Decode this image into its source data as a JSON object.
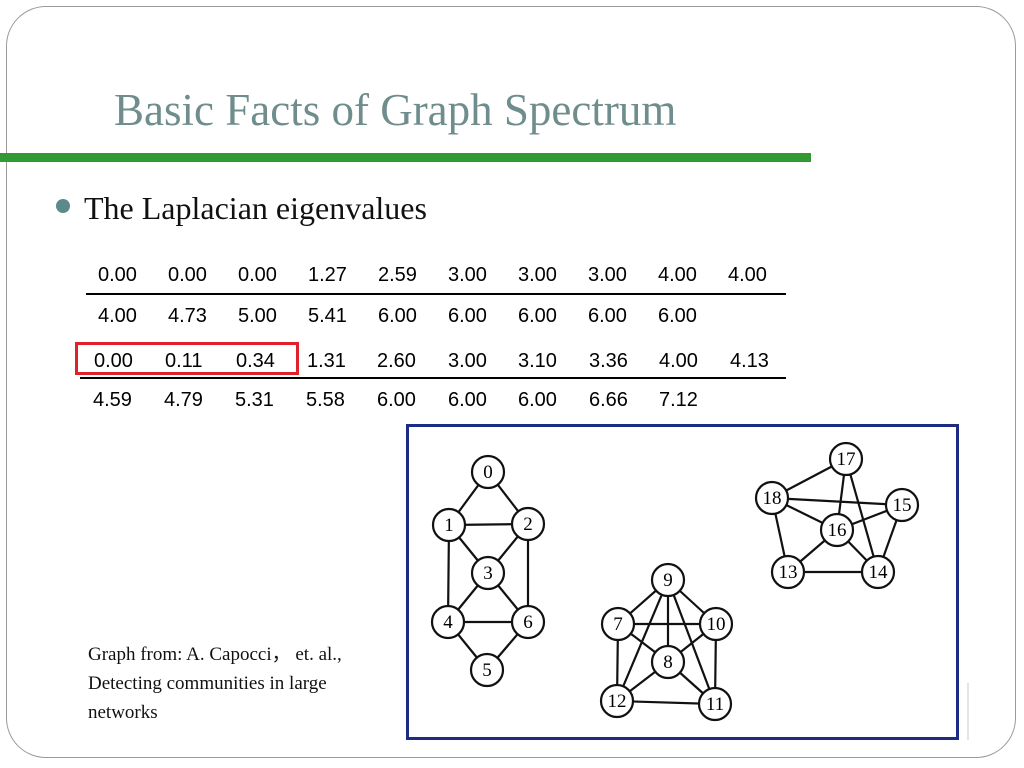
{
  "title": "Basic Facts of Graph Spectrum",
  "bullet": "The Laplacian eigenvalues",
  "eigen_table_1": {
    "row1": [
      "0.00",
      "0.00",
      "0.00",
      "1.27",
      "2.59",
      "3.00",
      "3.00",
      "3.00",
      "4.00",
      "4.00"
    ],
    "row2": [
      "4.00",
      "4.73",
      "5.00",
      "5.41",
      "6.00",
      "6.00",
      "6.00",
      "6.00",
      "6.00"
    ]
  },
  "eigen_table_2": {
    "row1": [
      "0.00",
      "0.11",
      "0.34",
      "1.31",
      "2.60",
      "3.00",
      "3.10",
      "3.36",
      "4.00",
      "4.13"
    ],
    "row2": [
      "4.59",
      "4.79",
      "5.31",
      "5.58",
      "6.00",
      "6.00",
      "6.00",
      "6.66",
      "7.12"
    ]
  },
  "graph": {
    "nodes": [
      "0",
      "1",
      "2",
      "3",
      "4",
      "5",
      "6",
      "7",
      "8",
      "9",
      "10",
      "11",
      "12",
      "13",
      "14",
      "15",
      "16",
      "17",
      "18"
    ],
    "edges": [
      [
        0,
        1
      ],
      [
        0,
        2
      ],
      [
        1,
        2
      ],
      [
        1,
        3
      ],
      [
        2,
        3
      ],
      [
        1,
        4
      ],
      [
        2,
        6
      ],
      [
        3,
        4
      ],
      [
        3,
        6
      ],
      [
        4,
        6
      ],
      [
        4,
        5
      ],
      [
        6,
        5
      ],
      [
        9,
        7
      ],
      [
        9,
        10
      ],
      [
        9,
        8
      ],
      [
        9,
        12
      ],
      [
        9,
        11
      ],
      [
        7,
        10
      ],
      [
        7,
        8
      ],
      [
        7,
        12
      ],
      [
        10,
        8
      ],
      [
        10,
        11
      ],
      [
        8,
        12
      ],
      [
        8,
        11
      ],
      [
        12,
        11
      ],
      [
        17,
        18
      ],
      [
        17,
        16
      ],
      [
        17,
        14
      ],
      [
        18,
        15
      ],
      [
        18,
        16
      ],
      [
        18,
        13
      ],
      [
        15,
        16
      ],
      [
        15,
        14
      ],
      [
        16,
        13
      ],
      [
        16,
        14
      ],
      [
        13,
        14
      ]
    ]
  },
  "caption": {
    "line1": "Graph  from: A. Capocci，  et. al.,",
    "line2": "Detecting communities in large",
    "line3": "networks"
  }
}
